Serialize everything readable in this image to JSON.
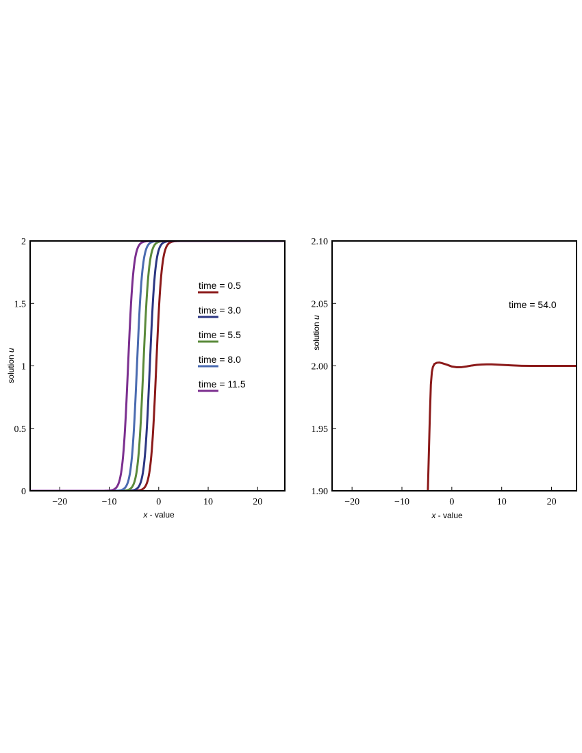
{
  "chart_data": [
    {
      "type": "line",
      "xlabel_var": "x",
      "xlabel_rest": " - value",
      "ylabel_text": "solution ",
      "ylabel_var": "u",
      "xlim": [
        -26,
        25.5
      ],
      "ylim": [
        0,
        2
      ],
      "xticks": [
        -20,
        -10,
        0,
        10,
        20
      ],
      "xtick_labels": [
        "−20",
        "−10",
        "0",
        "10",
        "20"
      ],
      "yticks": [
        0,
        0.5,
        1,
        1.5,
        2
      ],
      "ytick_labels": [
        "0",
        "0.5",
        "1",
        "1.5",
        "2"
      ],
      "grid": false,
      "legend_placement": "upper-right",
      "series": [
        {
          "name": "time = 0.5",
          "color": "#8b1a1a",
          "center": -0.5,
          "width": 0.55
        },
        {
          "name": "time = 3.0",
          "color": "#2c3682",
          "center": -1.8,
          "width": 0.55
        },
        {
          "name": "time = 5.5",
          "color": "#5a8a3a",
          "center": -3.1,
          "width": 0.55
        },
        {
          "name": "time = 8.0",
          "color": "#4a6bb0",
          "center": -4.4,
          "width": 0.55
        },
        {
          "name": "time = 11.5",
          "color": "#7b2f8f",
          "center": -6.2,
          "width": 0.55
        }
      ]
    },
    {
      "type": "line",
      "xlabel_var": "x",
      "xlabel_rest": " - value",
      "ylabel_text": "solution ",
      "ylabel_var": "u",
      "xlim": [
        -24,
        25
      ],
      "ylim": [
        1.9,
        2.1
      ],
      "xticks": [
        -20,
        -10,
        0,
        10,
        20
      ],
      "xtick_labels": [
        "−20",
        "−10",
        "0",
        "10",
        "20"
      ],
      "yticks": [
        1.9,
        1.95,
        2.0,
        2.05,
        2.1
      ],
      "ytick_labels": [
        "1.90",
        "1.95",
        "2.00",
        "2.05",
        "2.10"
      ],
      "grid": false,
      "annotation": "time = 54.0",
      "series": [
        {
          "color": "#8b1a1a",
          "x": [
            -4.8,
            -4.6,
            -4.4,
            -4.2,
            -4.0,
            -3.8,
            -3.5,
            -3.0,
            -2.5,
            -2.0,
            -1.0,
            0.0,
            1.0,
            2.0,
            3.0,
            4.0,
            5.0,
            6.0,
            7.0,
            8.0,
            9.0,
            10.0,
            12.0,
            14.0,
            16.0,
            18.0,
            20.0,
            22.0,
            25.0
          ],
          "y": [
            1.9,
            1.93,
            1.96,
            1.985,
            1.995,
            1.999,
            2.0015,
            2.0025,
            2.0027,
            2.0022,
            2.001,
            1.9995,
            1.9989,
            1.999,
            1.9996,
            2.0003,
            2.0008,
            2.0011,
            2.0012,
            2.0012,
            2.001,
            2.0008,
            2.0004,
            2.0001,
            2.0,
            2.0,
            2.0,
            2.0,
            2.0
          ]
        }
      ]
    }
  ]
}
